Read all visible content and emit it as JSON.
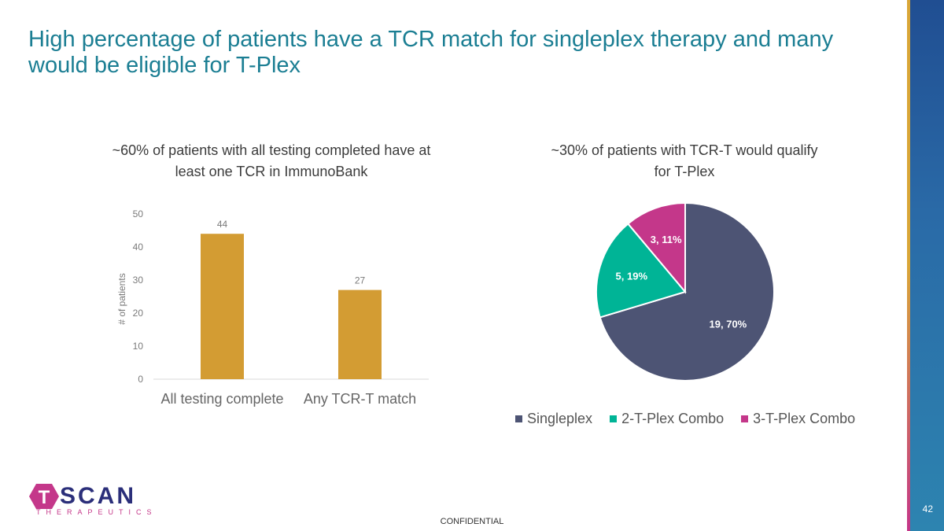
{
  "title": "High percentage of patients have a TCR match for singleplex therapy and many would be eligible for T-Plex",
  "footer": "CONFIDENTIAL",
  "page_number": "42",
  "logo": {
    "word": "TSCAN",
    "sub": "THERAPEUTICS",
    "letter": "T"
  },
  "colors": {
    "title": "#1b7e93",
    "bar": "#d39c33",
    "singleplex": "#4d5474",
    "combo2": "#00b496",
    "combo3": "#c4378a"
  },
  "chart_data": [
    {
      "type": "bar",
      "title": "~60% of patients with all testing completed have at least one TCR in ImmunoBank",
      "categories": [
        "All testing complete",
        "Any TCR-T match"
      ],
      "values": [
        44,
        27
      ],
      "data_labels": [
        "44",
        "27"
      ],
      "ylabel": "# of patients",
      "ylim": [
        0,
        50
      ],
      "yticks": [
        "0",
        "10",
        "20",
        "30",
        "40",
        "50"
      ],
      "grid": false
    },
    {
      "type": "pie",
      "title": "~30% of patients with TCR-T would qualify for T-Plex",
      "series": [
        {
          "name": "Singleplex",
          "value": 19,
          "label": "19, 70%"
        },
        {
          "name": "2-T-Plex Combo",
          "value": 5,
          "label": "5, 19%"
        },
        {
          "name": "3-T-Plex Combo",
          "value": 3,
          "label": "3, 11%"
        }
      ],
      "legend": "bottom"
    }
  ]
}
